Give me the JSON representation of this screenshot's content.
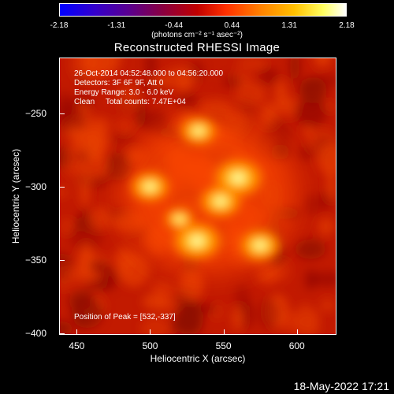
{
  "chart_data": {
    "type": "heatmap",
    "title": "Reconstructed RHESSI Image",
    "xlabel": "Heliocentric X (arcsec)",
    "ylabel": "Heliocentric Y (arcsec)",
    "xlim": [
      438,
      627
    ],
    "ylim": [
      -401,
      -212
    ],
    "x_ticks": [
      450,
      500,
      550,
      600
    ],
    "y_ticks": [
      -250,
      -300,
      -350,
      -400
    ],
    "colorbar": {
      "ticks": [
        "-2.18",
        "-1.31",
        "-0.44",
        "0.44",
        "1.31",
        "2.18"
      ],
      "tick_values": [
        -2.18,
        -1.31,
        -0.44,
        0.44,
        1.31,
        2.18
      ],
      "units": "(photons cm⁻² s⁻¹ asec⁻²)",
      "colormap": "blue-purple-red-orange-yellow-white"
    },
    "annotations": {
      "time_range": "26-Oct-2014 04:52:48.000 to 04:56:20.000",
      "detectors": "Detectors: 3F 6F 9F, Att 0",
      "energy": "Energy Range: 3.0 - 6.0 keV",
      "clean": "Clean     Total counts: 7.47E+04",
      "peak": "Position of Peak = [532,-337]"
    },
    "sources": [
      {
        "x": 560,
        "y": -294,
        "intensity": 1.0
      },
      {
        "x": 548,
        "y": -310,
        "intensity": 0.85
      },
      {
        "x": 532,
        "y": -337,
        "intensity": 1.0
      },
      {
        "x": 575,
        "y": -340,
        "intensity": 0.85
      },
      {
        "x": 500,
        "y": -300,
        "intensity": 0.8
      },
      {
        "x": 533,
        "y": -262,
        "intensity": 0.75
      },
      {
        "x": 520,
        "y": -322,
        "intensity": 0.6
      }
    ]
  },
  "footer": {
    "timestamp": "18-May-2022 17:21"
  }
}
